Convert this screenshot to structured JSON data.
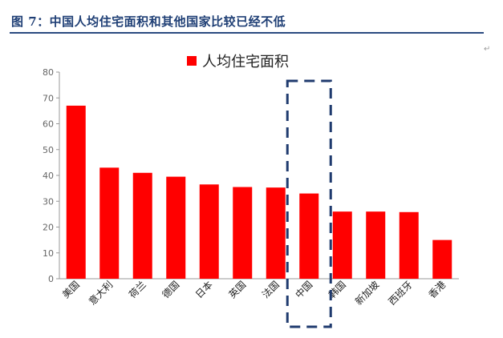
{
  "figure": {
    "title": "图 7：中国人均住宅面积和其他国家比较已经不低"
  },
  "chart_data": {
    "type": "bar",
    "categories": [
      "美国",
      "意大利",
      "荷兰",
      "德国",
      "日本",
      "英国",
      "法国",
      "中国",
      "韩国",
      "新加坡",
      "西班牙",
      "香港"
    ],
    "series": [
      {
        "name": "人均住宅面积",
        "color": "#ff0000",
        "values": [
          67,
          43,
          41,
          39.5,
          36.5,
          35.5,
          35.3,
          33,
          26,
          26,
          25.8,
          15
        ]
      }
    ],
    "ylim": [
      0,
      80
    ],
    "yticks": [
      0,
      10,
      20,
      30,
      40,
      50,
      60,
      70,
      80
    ],
    "legend_position": "top",
    "highlight_category": "中国",
    "highlight_style": "dashed-box",
    "highlight_color": "#1f3a6e",
    "grid": false
  }
}
